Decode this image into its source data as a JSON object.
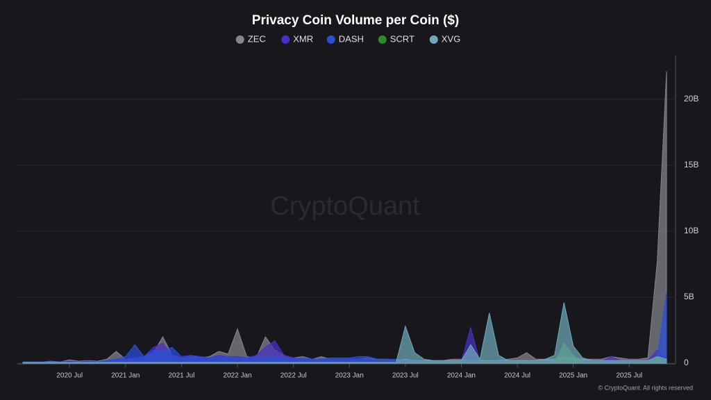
{
  "chart_data": {
    "type": "area",
    "title": "Privacy Coin Volume per Coin ($)",
    "watermark": "CryptoQuant",
    "copyright": "© CryptoQuant. All rights reserved",
    "x": [
      "2020-02",
      "2020-03",
      "2020-04",
      "2020-05",
      "2020-06",
      "2020-07",
      "2020-08",
      "2020-09",
      "2020-10",
      "2020-11",
      "2020-12",
      "2021-01",
      "2021-02",
      "2021-03",
      "2021-04",
      "2021-05",
      "2021-06",
      "2021-07",
      "2021-08",
      "2021-09",
      "2021-10",
      "2021-11",
      "2021-12",
      "2022-01",
      "2022-02",
      "2022-03",
      "2022-04",
      "2022-05",
      "2022-06",
      "2022-07",
      "2022-08",
      "2022-09",
      "2022-10",
      "2022-11",
      "2022-12",
      "2023-01",
      "2023-02",
      "2023-03",
      "2023-04",
      "2023-05",
      "2023-06",
      "2023-07",
      "2023-08",
      "2023-09",
      "2023-10",
      "2023-11",
      "2023-12",
      "2024-01",
      "2024-02",
      "2024-03",
      "2024-04",
      "2024-05",
      "2024-06",
      "2024-07",
      "2024-08",
      "2024-09",
      "2024-10",
      "2024-11",
      "2024-12",
      "2025-01",
      "2025-02",
      "2025-03",
      "2025-04",
      "2025-05",
      "2025-06",
      "2025-07",
      "2025-08",
      "2025-09",
      "2025-10",
      "2025-11"
    ],
    "xlim": [
      "2020-02",
      "2025-11"
    ],
    "xticks": [
      {
        "value": "2020-07",
        "label": "2020 Jul"
      },
      {
        "value": "2021-01",
        "label": "2021 Jan"
      },
      {
        "value": "2021-07",
        "label": "2021 Jul"
      },
      {
        "value": "2022-01",
        "label": "2022 Jan"
      },
      {
        "value": "2022-07",
        "label": "2022 Jul"
      },
      {
        "value": "2023-01",
        "label": "2023 Jan"
      },
      {
        "value": "2023-07",
        "label": "2023 Jul"
      },
      {
        "value": "2024-01",
        "label": "2024 Jan"
      },
      {
        "value": "2024-07",
        "label": "2024 Jul"
      },
      {
        "value": "2025-01",
        "label": "2025 Jan"
      },
      {
        "value": "2025-07",
        "label": "2025 Jul"
      }
    ],
    "ylim": [
      0,
      23.3
    ],
    "yticks": [
      0,
      {
        "value": 5,
        "label": "5B"
      },
      {
        "value": 10,
        "label": "10B"
      },
      {
        "value": 15,
        "label": "15B"
      },
      {
        "value": 20,
        "label": "20B"
      }
    ],
    "grid": true,
    "series": [
      {
        "name": "ZEC",
        "color": "#85858e",
        "values": [
          0.1,
          0.1,
          0.1,
          0.15,
          0.1,
          0.25,
          0.15,
          0.2,
          0.15,
          0.3,
          0.9,
          0.3,
          0.4,
          0.5,
          0.8,
          2.0,
          0.6,
          0.4,
          0.5,
          0.4,
          0.5,
          0.9,
          0.7,
          2.6,
          0.5,
          0.4,
          2.0,
          1.0,
          0.6,
          0.4,
          0.5,
          0.3,
          0.5,
          0.3,
          0.3,
          0.3,
          0.3,
          0.4,
          0.3,
          0.3,
          0.2,
          0.3,
          0.2,
          0.2,
          0.2,
          0.2,
          0.3,
          0.3,
          0.2,
          0.2,
          0.2,
          0.2,
          0.3,
          0.4,
          0.8,
          0.3,
          0.3,
          0.3,
          0.5,
          0.4,
          0.3,
          0.3,
          0.3,
          0.5,
          0.4,
          0.3,
          0.3,
          0.4,
          7.7,
          22.1
        ]
      },
      {
        "name": "XMR",
        "color": "#4a2fc4",
        "values": [
          0.1,
          0.1,
          0.1,
          0.1,
          0.1,
          0.15,
          0.1,
          0.15,
          0.1,
          0.2,
          0.3,
          0.3,
          0.4,
          0.5,
          1.2,
          1.5,
          0.6,
          0.4,
          0.5,
          0.5,
          0.4,
          0.6,
          0.5,
          0.5,
          0.4,
          0.6,
          1.2,
          1.7,
          0.6,
          0.4,
          0.3,
          0.3,
          0.3,
          0.3,
          0.3,
          0.3,
          0.3,
          0.3,
          0.2,
          0.2,
          0.2,
          0.2,
          0.1,
          0.1,
          0.1,
          0.1,
          0.1,
          0.1,
          2.7,
          0.1,
          0.1,
          0.1,
          0.1,
          0.1,
          0.1,
          0.1,
          0.1,
          0.1,
          0.2,
          0.1,
          0.1,
          0.2,
          0.1,
          0.5,
          0.2,
          0.2,
          0.2,
          0.2,
          1.0,
          0.4
        ]
      },
      {
        "name": "DASH",
        "color": "#2a4fd8",
        "values": [
          0.1,
          0.1,
          0.1,
          0.1,
          0.1,
          0.1,
          0.1,
          0.1,
          0.1,
          0.2,
          0.3,
          0.5,
          1.4,
          0.5,
          1.0,
          0.9,
          1.2,
          0.5,
          0.6,
          0.5,
          0.4,
          0.5,
          0.5,
          0.4,
          0.4,
          0.5,
          0.4,
          0.5,
          0.4,
          0.3,
          0.4,
          0.3,
          0.3,
          0.4,
          0.4,
          0.4,
          0.5,
          0.5,
          0.3,
          0.3,
          0.3,
          0.2,
          0.2,
          0.1,
          0.1,
          0.1,
          0.1,
          0.1,
          0.1,
          0.1,
          0.1,
          0.1,
          0.1,
          0.1,
          0.1,
          0.1,
          0.1,
          0.1,
          0.1,
          0.1,
          0.1,
          0.1,
          0.1,
          0.1,
          0.1,
          0.1,
          0.1,
          0.1,
          0.4,
          5.3
        ]
      },
      {
        "name": "SCRT",
        "color": "#2e8a2a",
        "values": [
          0.02,
          0.02,
          0.02,
          0.02,
          0.02,
          0.02,
          0.02,
          0.02,
          0.02,
          0.02,
          0.02,
          0.02,
          0.02,
          0.02,
          0.02,
          0.02,
          0.02,
          0.02,
          0.02,
          0.02,
          0.02,
          0.02,
          0.02,
          0.02,
          0.02,
          0.02,
          0.02,
          0.02,
          0.02,
          0.02,
          0.02,
          0.02,
          0.02,
          0.02,
          0.02,
          0.02,
          0.02,
          0.02,
          0.02,
          0.02,
          0.02,
          0.02,
          0.02,
          0.02,
          0.02,
          0.02,
          0.02,
          0.02,
          0.02,
          0.02,
          0.02,
          0.02,
          0.02,
          0.02,
          0.02,
          0.02,
          0.02,
          0.02,
          1.5,
          0.6,
          0.02,
          0.02,
          0.02,
          0.02,
          0.02,
          0.02,
          0.02,
          0.02,
          0.4,
          0.02
        ]
      },
      {
        "name": "XVG",
        "color": "#6fa9b9",
        "values": [
          0.05,
          0.05,
          0.05,
          0.05,
          0.05,
          0.05,
          0.05,
          0.05,
          0.05,
          0.05,
          0.05,
          0.05,
          0.05,
          0.05,
          0.05,
          0.05,
          0.05,
          0.05,
          0.05,
          0.05,
          0.05,
          0.05,
          0.05,
          0.05,
          0.05,
          0.05,
          0.05,
          0.05,
          0.05,
          0.05,
          0.05,
          0.05,
          0.05,
          0.05,
          0.05,
          0.05,
          0.05,
          0.05,
          0.05,
          0.05,
          0.05,
          2.8,
          0.8,
          0.3,
          0.2,
          0.2,
          0.2,
          0.2,
          1.4,
          0.3,
          3.8,
          0.6,
          0.2,
          0.2,
          0.2,
          0.2,
          0.3,
          0.6,
          4.6,
          1.3,
          0.4,
          0.2,
          0.2,
          0.2,
          0.2,
          0.2,
          0.2,
          0.2,
          0.5,
          0.3
        ]
      }
    ]
  }
}
